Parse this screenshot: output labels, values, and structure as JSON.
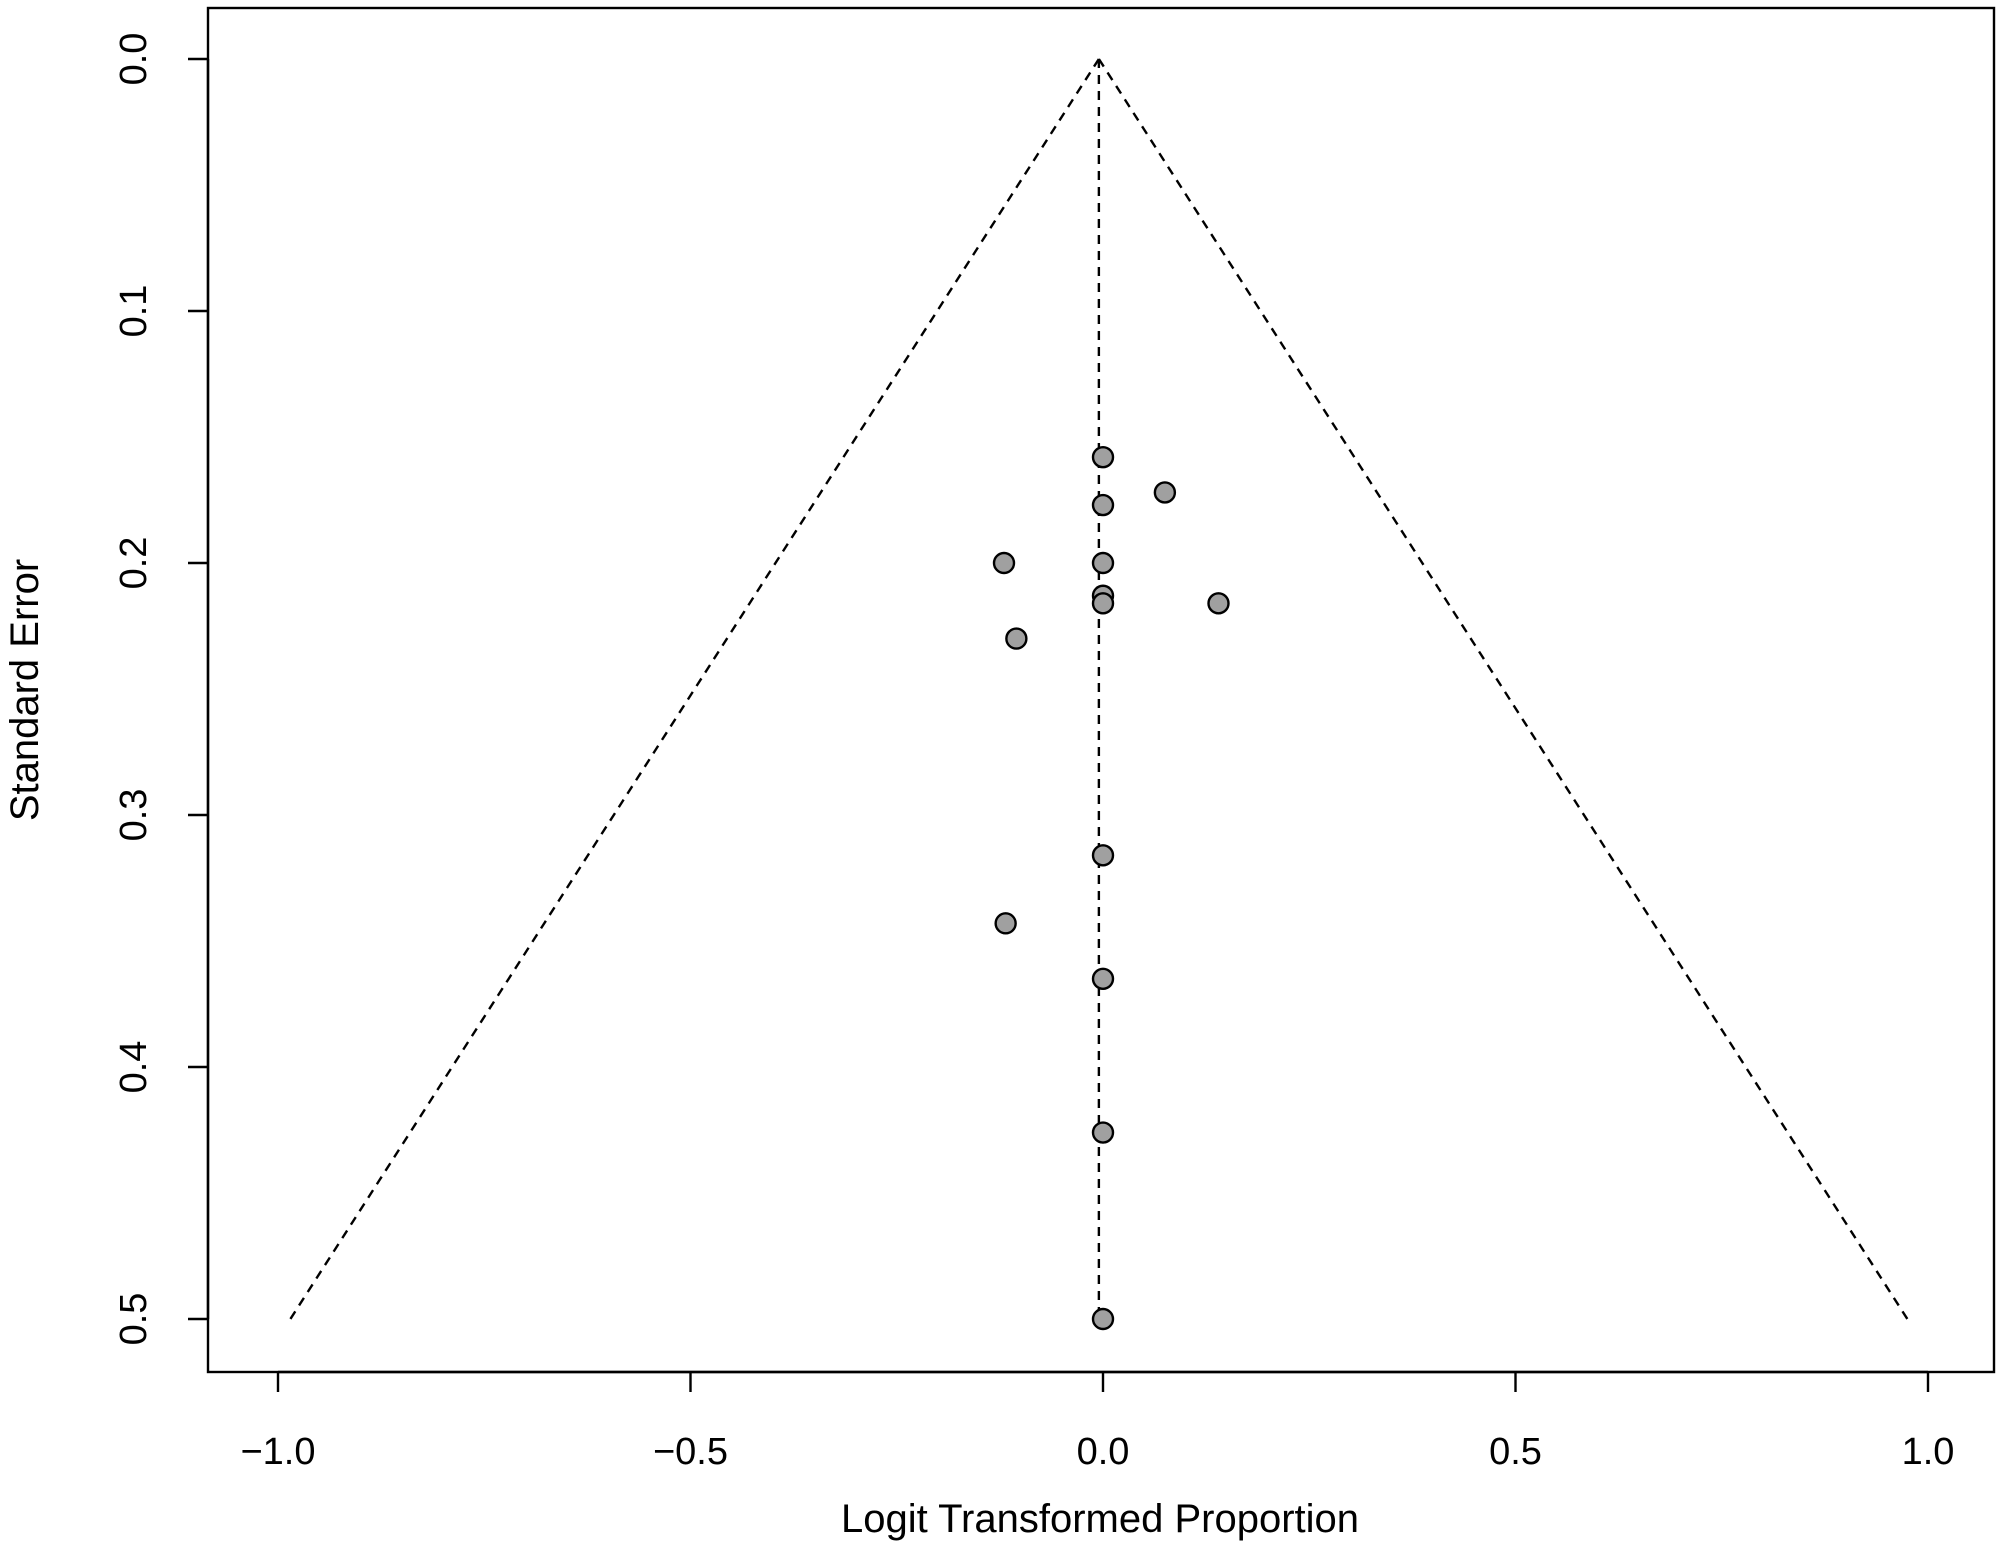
{
  "chart_data": {
    "type": "scatter",
    "xlabel": "Logit Transformed Proportion",
    "ylabel": "Standard Error",
    "xlim": [
      -1.1,
      1.1
    ],
    "ylim": [
      0.0,
      0.52
    ],
    "y_reversed": true,
    "xticks": [
      -1.0,
      -0.5,
      0.0,
      0.5,
      1.0
    ],
    "xtick_labels": [
      "−1.0",
      "−0.5",
      "0.0",
      "0.5",
      "1.0"
    ],
    "yticks": [
      0.0,
      0.1,
      0.2,
      0.3,
      0.4,
      0.5
    ],
    "ytick_labels": [
      "0.0",
      "0.1",
      "0.2",
      "0.3",
      "0.4",
      "0.5"
    ],
    "center_estimate": -0.005,
    "funnel_se_max": 0.5,
    "funnel_bounds_at_max_se": [
      -0.985,
      0.975
    ],
    "grid": false,
    "legend": "none",
    "points": [
      {
        "x": 0.0,
        "y": 0.158
      },
      {
        "x": 0.075,
        "y": 0.172
      },
      {
        "x": 0.0,
        "y": 0.177
      },
      {
        "x": -0.12,
        "y": 0.2
      },
      {
        "x": 0.0,
        "y": 0.2
      },
      {
        "x": 0.0,
        "y": 0.213
      },
      {
        "x": 0.0,
        "y": 0.216
      },
      {
        "x": 0.14,
        "y": 0.216
      },
      {
        "x": -0.105,
        "y": 0.23
      },
      {
        "x": 0.0,
        "y": 0.316
      },
      {
        "x": -0.118,
        "y": 0.343
      },
      {
        "x": 0.0,
        "y": 0.365
      },
      {
        "x": 0.0,
        "y": 0.426
      },
      {
        "x": 0.0,
        "y": 0.5
      }
    ]
  }
}
